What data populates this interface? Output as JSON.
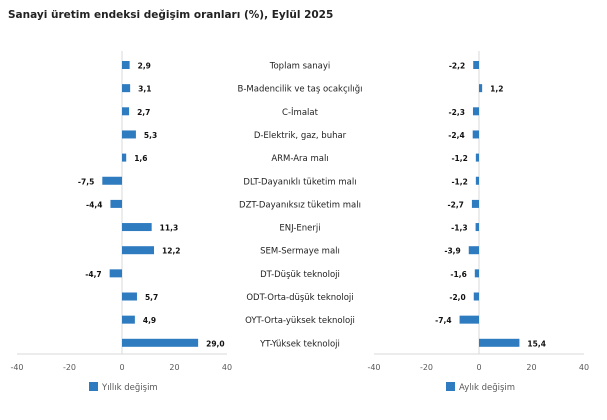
{
  "chart_data": [
    {
      "type": "bar",
      "orientation": "horizontal",
      "title": "Sanayi üretim endeksi değişim oranları (%), Eylül 2025",
      "categories": [
        "Toplam sanayi",
        "B-Madencilik ve taş ocakçılığı",
        "C-İmalat",
        "D-Elektrik, gaz, buhar",
        "ARM-Ara malı",
        "DLT-Dayanıklı tüketim malı",
        "DZT-Dayanıksız tüketim malı",
        "ENJ-Enerji",
        "SEM-Sermaye malı",
        "DT-Düşük teknoloji",
        "ODT-Orta-düşük teknoloji",
        "OYT-Orta-yüksek teknoloji",
        "YT-Yüksek teknoloji"
      ],
      "series": [
        {
          "name": "Yıllık değişim",
          "values": [
            2.9,
            3.1,
            2.7,
            5.3,
            1.6,
            -7.5,
            -4.4,
            11.3,
            12.2,
            -4.7,
            5.7,
            4.9,
            29.0
          ],
          "labels": [
            "2,9",
            "3,1",
            "2,7",
            "5,3",
            "1,6",
            "-7,5",
            "-4,4",
            "11,3",
            "12,2",
            "-4,7",
            "5,7",
            "4,9",
            "29,0"
          ]
        },
        {
          "name": "Aylık değişim",
          "values": [
            -2.2,
            1.2,
            -2.3,
            -2.4,
            -1.2,
            -1.2,
            -2.7,
            -1.3,
            -3.9,
            -1.6,
            -2.0,
            -7.4,
            15.4
          ],
          "labels": [
            "-2,2",
            "1,2",
            "-2,3",
            "-2,4",
            "-1,2",
            "-1,2",
            "-2,7",
            "-1,3",
            "-3,9",
            "-1,6",
            "-2,0",
            "-7,4",
            "15,4"
          ]
        }
      ],
      "xlim": [
        -40,
        40
      ],
      "ticks": [
        -40,
        -20,
        0,
        20,
        40
      ],
      "tick_labels": [
        "-40",
        "-20",
        "0",
        "20",
        "40"
      ],
      "grid": false,
      "legend": "bottom",
      "color": "#2e7bbf"
    }
  ]
}
